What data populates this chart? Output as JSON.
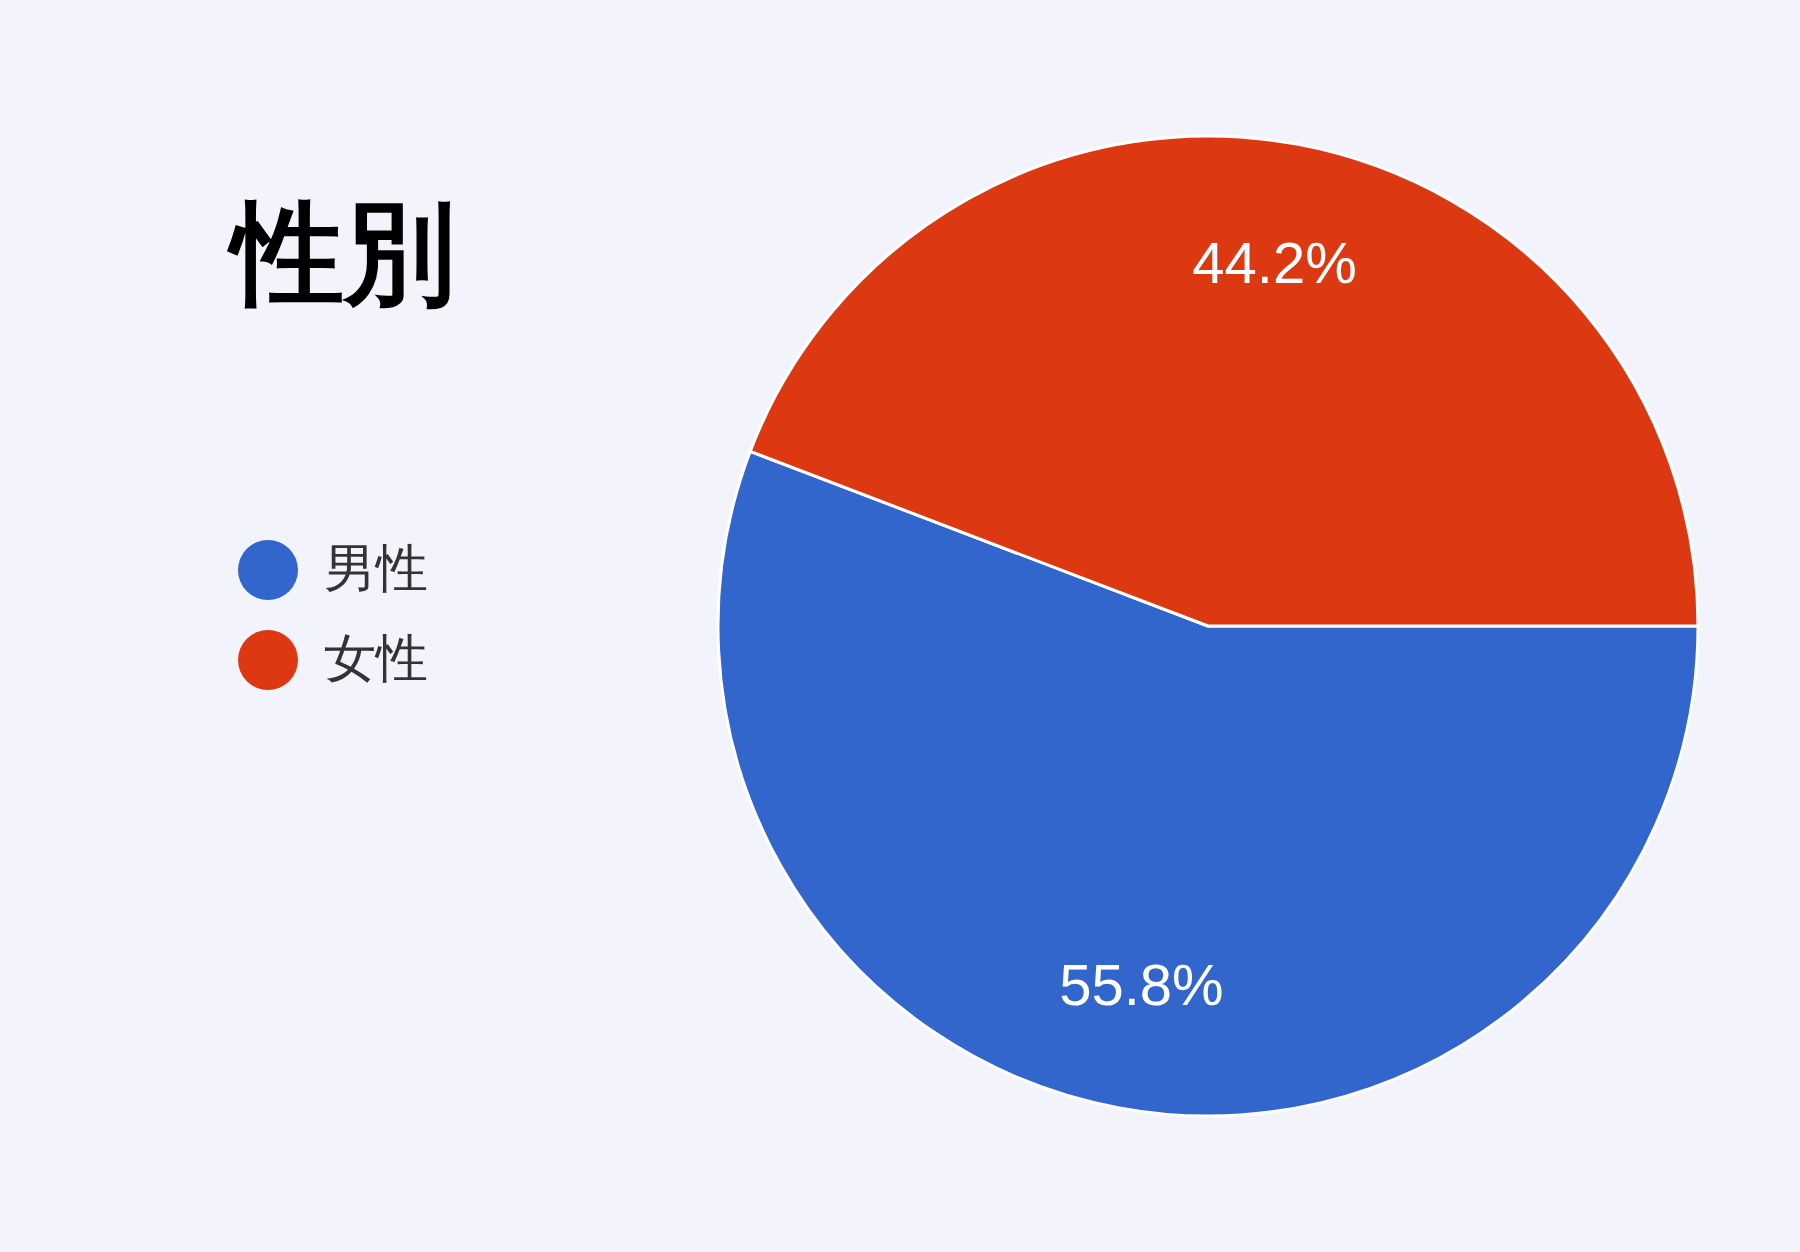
{
  "chart_data": {
    "type": "pie",
    "title": "性別",
    "categories": [
      "男性",
      "女性"
    ],
    "values": [
      55.8,
      44.2
    ],
    "colors": [
      "#3366cc",
      "#dc3912"
    ],
    "value_labels": [
      "55.8%",
      "44.2%"
    ],
    "legend": "left"
  }
}
